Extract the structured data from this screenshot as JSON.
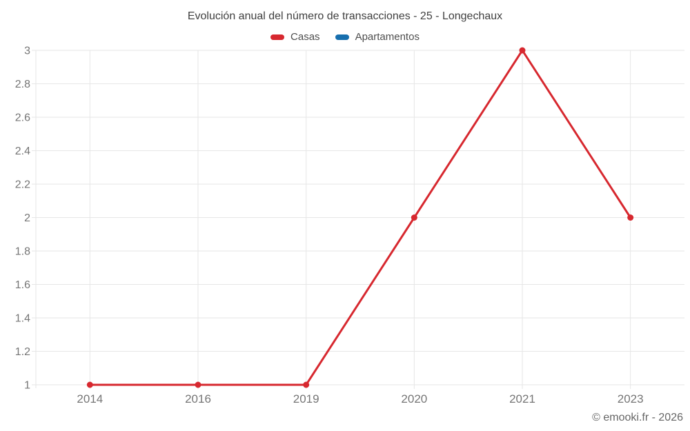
{
  "header": {
    "title": "Evolución anual del número de transacciones - 25 - Longechaux"
  },
  "legend": {
    "items": [
      {
        "label": "Casas",
        "color": "#d7282f"
      },
      {
        "label": "Apartamentos",
        "color": "#176fae"
      }
    ]
  },
  "footer": {
    "credit": "© emooki.fr - 2026"
  },
  "chart_data": {
    "type": "line",
    "title": "Evolución anual del número de transacciones - 25 - Longechaux",
    "categories": [
      "2014",
      "2016",
      "2019",
      "2020",
      "2021",
      "2023"
    ],
    "series": [
      {
        "name": "Casas",
        "color": "#d7282f",
        "values": [
          1,
          1,
          1,
          2,
          3,
          2
        ]
      },
      {
        "name": "Apartamentos",
        "color": "#176fae",
        "values": []
      }
    ],
    "xlabel": "",
    "ylabel": "",
    "ylim": [
      1,
      3
    ],
    "ytick_step": 0.2,
    "ytick_labels": [
      "1",
      "1.2",
      "1.4",
      "1.6",
      "1.8",
      "2",
      "2.2",
      "2.4",
      "2.6",
      "2.8",
      "3"
    ],
    "grid": true,
    "legend_position": "top",
    "grid_color": "#e6e6e6",
    "tick_label_color": "#757575"
  }
}
